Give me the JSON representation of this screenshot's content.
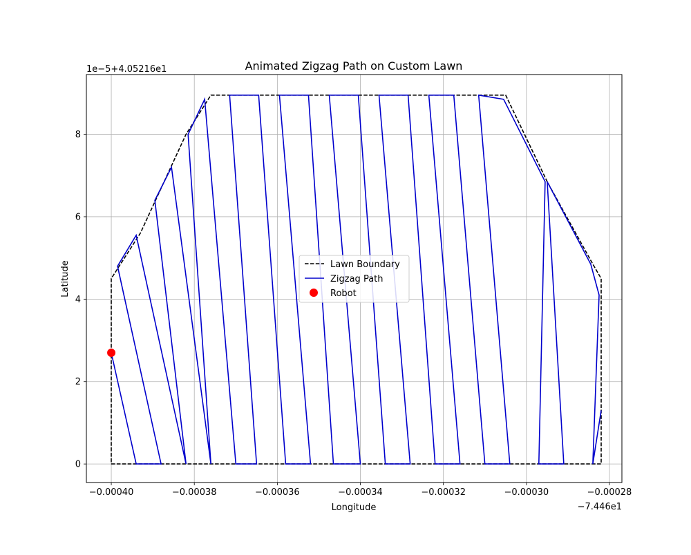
{
  "chart_data": {
    "type": "line",
    "title": "Animated Zigzag Path on Custom Lawn",
    "xlabel": "Longitude",
    "ylabel": "Latitude",
    "x_offset_label": "−7.446e1",
    "y_offset_label": "1e−5+4.05216e1",
    "xlim": [
      -0.000406,
      -0.000277
    ],
    "ylim": [
      -0.45,
      9.45
    ],
    "x_ticks": [
      -0.0004,
      -0.00038,
      -0.00036,
      -0.00034,
      -0.00032,
      -0.0003,
      -0.00028
    ],
    "x_tick_labels": [
      "−0.00040",
      "−0.00038",
      "−0.00036",
      "−0.00034",
      "−0.00032",
      "−0.00030",
      "−0.00028"
    ],
    "y_ticks": [
      0,
      2,
      4,
      6,
      8
    ],
    "y_tick_labels": [
      "0",
      "2",
      "4",
      "6",
      "8"
    ],
    "grid": true,
    "legend_position": "center",
    "series": [
      {
        "name": "Lawn Boundary",
        "style": "dashed",
        "color": "#000000",
        "x": [
          -0.0004,
          -0.000282,
          -0.000282,
          -0.000284,
          -0.000295,
          -0.000305,
          -0.000376,
          -0.000382,
          -0.000393,
          -0.0004,
          -0.0004
        ],
        "y": [
          0,
          0,
          4.5,
          4.85,
          6.85,
          8.95,
          8.95,
          8.0,
          5.6,
          4.5,
          0
        ]
      },
      {
        "name": "Zigzag Path",
        "style": "solid",
        "color": "#0000cc",
        "x": [
          -0.0004,
          -0.000394,
          -0.000388,
          -0.0003985,
          -0.000394,
          -0.000382,
          -0.0003895,
          -0.0003855,
          -0.000376,
          -0.0003815,
          -0.0003775,
          -0.00037,
          -0.000365,
          -0.0003715,
          -0.0003645,
          -0.000358,
          -0.000352,
          -0.0003595,
          -0.0003525,
          -0.0003465,
          -0.00034,
          -0.0003475,
          -0.0003405,
          -0.000334,
          -0.000328,
          -0.0003355,
          -0.0003285,
          -0.000322,
          -0.000316,
          -0.0003235,
          -0.0003175,
          -0.00031,
          -0.000304,
          -0.0003115,
          -0.0003055,
          -0.0002955,
          -0.000297,
          -0.000291,
          -0.000295,
          -0.0002845,
          -0.0002825,
          -0.000284,
          -0.000282
        ],
        "y": [
          2.7,
          0,
          0,
          4.8,
          5.55,
          0,
          6.4,
          7.2,
          0,
          8.0,
          8.85,
          0,
          0,
          8.95,
          8.95,
          0,
          0,
          8.95,
          8.95,
          0,
          0,
          8.95,
          8.95,
          0,
          0,
          8.95,
          8.95,
          0,
          0,
          8.95,
          8.95,
          0,
          0,
          8.95,
          8.85,
          6.85,
          0,
          0,
          6.85,
          4.85,
          4.1,
          0,
          1.3
        ]
      },
      {
        "name": "Robot",
        "style": "marker",
        "color": "#ff0000",
        "x": [
          -0.0004
        ],
        "y": [
          2.7
        ]
      }
    ]
  }
}
